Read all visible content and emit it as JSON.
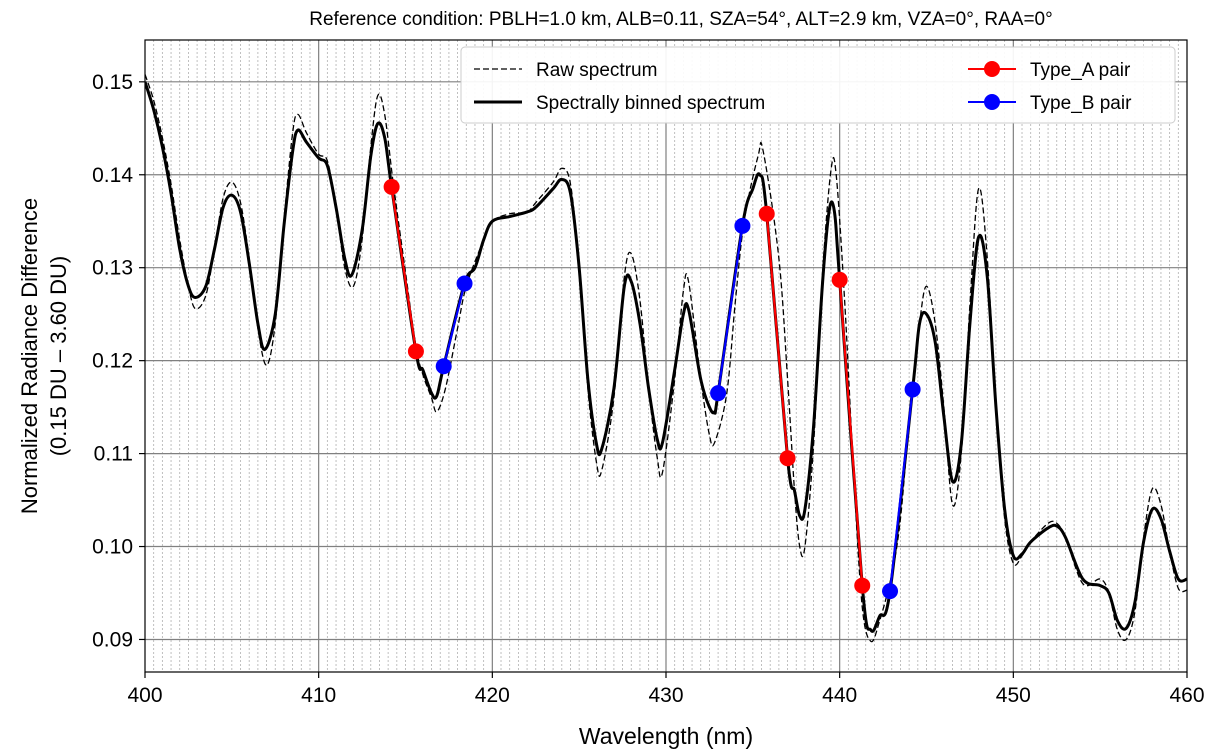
{
  "chart_data": {
    "type": "line",
    "title": "Reference condition: PBLH=1.0 km, ALB=0.11, SZA=54°, ALT=2.9 km, VZA=0°, RAA=0°",
    "xlabel": "Wavelength (nm)",
    "ylabel": [
      "Normalized Radiance Difference",
      "(0.15 DU – 3.60 DU)"
    ],
    "xlim": [
      400,
      460
    ],
    "ylim": [
      0.0865,
      0.1545
    ],
    "xticks": [
      400,
      410,
      420,
      430,
      440,
      450,
      460
    ],
    "xtick_labels": [
      "400",
      "410",
      "420",
      "430",
      "440",
      "450",
      "460"
    ],
    "yticks": [
      0.09,
      0.1,
      0.11,
      0.12,
      0.13,
      0.14,
      0.15
    ],
    "ytick_labels": [
      "0.09",
      "0.10",
      "0.11",
      "0.12",
      "0.13",
      "0.14",
      "0.15"
    ],
    "grid": true,
    "minor_grid_spacing_nm": 0.5,
    "legend_position": "top-right",
    "colors": {
      "raw": "#000000",
      "binned": "#000000",
      "type_a": "#ff0000",
      "type_b": "#0000ff",
      "major_grid": "#808080",
      "minor_grid": "#b0b0b0"
    },
    "series": [
      {
        "name": "Raw spectrum",
        "style": "dashed",
        "points": [
          [
            400,
            0.1508
          ],
          [
            400.5,
            0.148
          ],
          [
            401,
            0.144
          ],
          [
            401.5,
            0.139
          ],
          [
            402,
            0.133
          ],
          [
            402.5,
            0.128
          ],
          [
            402.9,
            0.1256
          ],
          [
            403.5,
            0.127
          ],
          [
            404,
            0.132
          ],
          [
            404.5,
            0.1375
          ],
          [
            405,
            0.1392
          ],
          [
            405.5,
            0.137
          ],
          [
            406,
            0.131
          ],
          [
            406.5,
            0.1235
          ],
          [
            407,
            0.1195
          ],
          [
            407.5,
            0.124
          ],
          [
            408,
            0.135
          ],
          [
            408.5,
            0.1445
          ],
          [
            408.8,
            0.1465
          ],
          [
            409.3,
            0.1445
          ],
          [
            410,
            0.1422
          ],
          [
            410.5,
            0.1415
          ],
          [
            411,
            0.1365
          ],
          [
            411.5,
            0.13
          ],
          [
            412,
            0.128
          ],
          [
            412.5,
            0.133
          ],
          [
            413,
            0.143
          ],
          [
            413.4,
            0.1485
          ],
          [
            413.8,
            0.1465
          ],
          [
            414.3,
            0.139
          ],
          [
            415,
            0.1295
          ],
          [
            415.6,
            0.1215
          ],
          [
            416,
            0.1185
          ],
          [
            416.5,
            0.116
          ],
          [
            416.8,
            0.1145
          ],
          [
            417.3,
            0.117
          ],
          [
            418,
            0.1235
          ],
          [
            418.5,
            0.128
          ],
          [
            419.5,
            0.133
          ],
          [
            420,
            0.135
          ],
          [
            421,
            0.1358
          ],
          [
            422,
            0.136
          ],
          [
            422.5,
            0.137
          ],
          [
            423.5,
            0.1392
          ],
          [
            424,
            0.1407
          ],
          [
            424.5,
            0.139
          ],
          [
            425,
            0.13
          ],
          [
            425.5,
            0.117
          ],
          [
            426,
            0.109
          ],
          [
            426.3,
            0.1082
          ],
          [
            427,
            0.116
          ],
          [
            427.6,
            0.129
          ],
          [
            428,
            0.1315
          ],
          [
            428.5,
            0.1265
          ],
          [
            429,
            0.117
          ],
          [
            429.5,
            0.1095
          ],
          [
            429.8,
            0.108
          ],
          [
            430.5,
            0.118
          ],
          [
            431,
            0.1275
          ],
          [
            431.3,
            0.1285
          ],
          [
            432,
            0.118
          ],
          [
            432.5,
            0.112
          ],
          [
            432.8,
            0.1112
          ],
          [
            433.5,
            0.1165
          ],
          [
            434,
            0.1265
          ],
          [
            434.5,
            0.135
          ],
          [
            435.3,
            0.142
          ],
          [
            435.6,
            0.1425
          ],
          [
            436.5,
            0.131
          ],
          [
            437,
            0.118
          ],
          [
            437.4,
            0.106
          ],
          [
            437.7,
            0.1
          ],
          [
            438,
            0.1
          ],
          [
            438.5,
            0.111
          ],
          [
            439,
            0.129
          ],
          [
            439.5,
            0.1405
          ],
          [
            439.8,
            0.14
          ],
          [
            440.3,
            0.126
          ],
          [
            440.8,
            0.108
          ],
          [
            441.3,
            0.0935
          ],
          [
            441.8,
            0.0898
          ],
          [
            442.3,
            0.092
          ],
          [
            443,
            0.097
          ],
          [
            443.5,
            0.103
          ],
          [
            444,
            0.1135
          ],
          [
            444.6,
            0.124
          ],
          [
            445,
            0.128
          ],
          [
            445.5,
            0.124
          ],
          [
            446,
            0.115
          ],
          [
            446.5,
            0.1045
          ],
          [
            447,
            0.11
          ],
          [
            447.5,
            0.126
          ],
          [
            448,
            0.1385
          ],
          [
            448.5,
            0.131
          ],
          [
            449,
            0.115
          ],
          [
            449.5,
            0.103
          ],
          [
            450,
            0.0982
          ],
          [
            450.5,
            0.099
          ],
          [
            451,
            0.1005
          ],
          [
            452,
            0.1025
          ],
          [
            452.5,
            0.1025
          ],
          [
            453,
            0.101
          ],
          [
            454,
            0.096
          ],
          [
            455,
            0.0965
          ],
          [
            455.5,
            0.095
          ],
          [
            456,
            0.091
          ],
          [
            456.5,
            0.09
          ],
          [
            457,
            0.093
          ],
          [
            457.5,
            0.101
          ],
          [
            458,
            0.1062
          ],
          [
            458.5,
            0.1045
          ],
          [
            459,
            0.0995
          ],
          [
            459.5,
            0.0955
          ],
          [
            460,
            0.0953
          ]
        ]
      },
      {
        "name": "Spectrally binned spectrum",
        "style": "solid",
        "points": [
          [
            400,
            0.15
          ],
          [
            400.5,
            0.147
          ],
          [
            401,
            0.143
          ],
          [
            401.5,
            0.138
          ],
          [
            402,
            0.132
          ],
          [
            402.5,
            0.128
          ],
          [
            402.9,
            0.1268
          ],
          [
            403.5,
            0.128
          ],
          [
            404,
            0.132
          ],
          [
            404.5,
            0.1365
          ],
          [
            405,
            0.1378
          ],
          [
            405.5,
            0.136
          ],
          [
            406,
            0.1305
          ],
          [
            406.5,
            0.124
          ],
          [
            406.9,
            0.1212
          ],
          [
            407.5,
            0.125
          ],
          [
            408,
            0.1345
          ],
          [
            408.5,
            0.1425
          ],
          [
            408.8,
            0.1448
          ],
          [
            409.3,
            0.1435
          ],
          [
            410,
            0.1418
          ],
          [
            410.5,
            0.141
          ],
          [
            411,
            0.1365
          ],
          [
            411.5,
            0.131
          ],
          [
            411.9,
            0.1292
          ],
          [
            412.5,
            0.134
          ],
          [
            413,
            0.142
          ],
          [
            413.4,
            0.1455
          ],
          [
            413.8,
            0.144
          ],
          [
            414.2,
            0.1387
          ],
          [
            415.6,
            0.121
          ],
          [
            416,
            0.119
          ],
          [
            416.5,
            0.1165
          ],
          [
            416.8,
            0.1162
          ],
          [
            417.2,
            0.1194
          ],
          [
            418.4,
            0.1283
          ],
          [
            419,
            0.13
          ],
          [
            419.5,
            0.133
          ],
          [
            420,
            0.135
          ],
          [
            421,
            0.1355
          ],
          [
            422,
            0.136
          ],
          [
            422.5,
            0.1365
          ],
          [
            423.5,
            0.1385
          ],
          [
            424,
            0.1395
          ],
          [
            424.5,
            0.138
          ],
          [
            425,
            0.13
          ],
          [
            425.5,
            0.118
          ],
          [
            426,
            0.111
          ],
          [
            426.3,
            0.1105
          ],
          [
            427,
            0.117
          ],
          [
            427.6,
            0.128
          ],
          [
            428,
            0.1285
          ],
          [
            428.5,
            0.124
          ],
          [
            429,
            0.117
          ],
          [
            429.5,
            0.1115
          ],
          [
            429.8,
            0.1112
          ],
          [
            430.5,
            0.119
          ],
          [
            431,
            0.125
          ],
          [
            431.3,
            0.1255
          ],
          [
            432,
            0.118
          ],
          [
            432.5,
            0.115
          ],
          [
            432.8,
            0.1145
          ],
          [
            433,
            0.1165
          ],
          [
            434.4,
            0.1345
          ],
          [
            435,
            0.1385
          ],
          [
            435.4,
            0.14
          ],
          [
            435.8,
            0.1358
          ],
          [
            437,
            0.1095
          ],
          [
            437.4,
            0.106
          ],
          [
            437.7,
            0.1033
          ],
          [
            438,
            0.104
          ],
          [
            438.5,
            0.113
          ],
          [
            439,
            0.128
          ],
          [
            439.4,
            0.1362
          ],
          [
            439.7,
            0.136
          ],
          [
            440,
            0.1287
          ],
          [
            441.3,
            0.0958
          ],
          [
            441.8,
            0.091
          ],
          [
            442.3,
            0.0925
          ],
          [
            442.9,
            0.0952
          ],
          [
            444.2,
            0.1169
          ],
          [
            444.6,
            0.124
          ],
          [
            445,
            0.125
          ],
          [
            445.5,
            0.122
          ],
          [
            446,
            0.114
          ],
          [
            446.5,
            0.107
          ],
          [
            447,
            0.111
          ],
          [
            447.5,
            0.124
          ],
          [
            448,
            0.1333
          ],
          [
            448.5,
            0.129
          ],
          [
            449,
            0.115
          ],
          [
            449.5,
            0.104
          ],
          [
            450,
            0.099
          ],
          [
            450.5,
            0.0992
          ],
          [
            451,
            0.1005
          ],
          [
            452,
            0.102
          ],
          [
            452.5,
            0.1022
          ],
          [
            453,
            0.101
          ],
          [
            454,
            0.0965
          ],
          [
            455,
            0.0958
          ],
          [
            455.5,
            0.095
          ],
          [
            456,
            0.092
          ],
          [
            456.5,
            0.0912
          ],
          [
            457,
            0.094
          ],
          [
            457.5,
            0.1005
          ],
          [
            458,
            0.104
          ],
          [
            458.5,
            0.103
          ],
          [
            459,
            0.0995
          ],
          [
            459.5,
            0.0965
          ],
          [
            460,
            0.0965
          ]
        ]
      },
      {
        "name": "Type_A pair",
        "style": "marker-pairs",
        "color": "#ff0000",
        "pairs": [
          [
            [
              414.2,
              0.1387
            ],
            [
              415.6,
              0.121
            ]
          ],
          [
            [
              435.8,
              0.1358
            ],
            [
              437.0,
              0.1095
            ]
          ],
          [
            [
              440.0,
              0.1287
            ],
            [
              441.3,
              0.0958
            ]
          ]
        ]
      },
      {
        "name": "Type_B pair",
        "style": "marker-pairs",
        "color": "#0000ff",
        "pairs": [
          [
            [
              417.2,
              0.1194
            ],
            [
              418.4,
              0.1283
            ]
          ],
          [
            [
              433.0,
              0.1165
            ],
            [
              434.4,
              0.1345
            ]
          ],
          [
            [
              442.9,
              0.0952
            ],
            [
              444.2,
              0.1169
            ]
          ]
        ]
      }
    ]
  }
}
